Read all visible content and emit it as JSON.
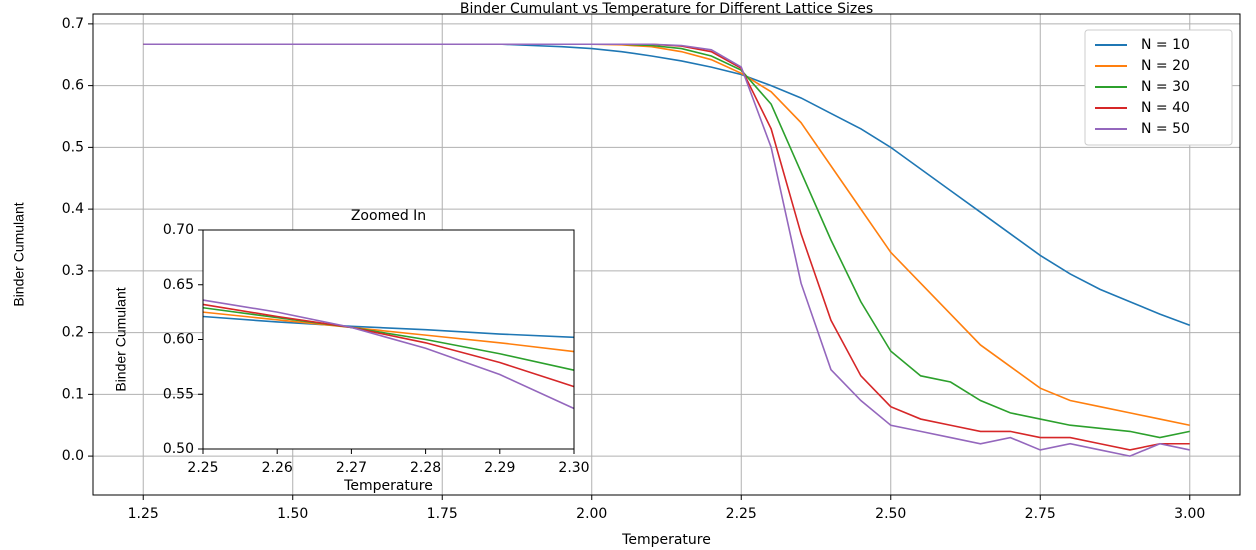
{
  "chart_data": [
    {
      "type": "line",
      "title": "Binder Cumulant vs Temperature for Different Lattice Sizes",
      "xlabel": "Temperature",
      "ylabel": "Binder Cumulant",
      "x": [
        1.25,
        1.3,
        1.35,
        1.4,
        1.45,
        1.5,
        1.55,
        1.6,
        1.65,
        1.7,
        1.75,
        1.8,
        1.85,
        1.9,
        1.95,
        2.0,
        2.05,
        2.1,
        2.15,
        2.2,
        2.25,
        2.3,
        2.35,
        2.4,
        2.45,
        2.5,
        2.55,
        2.6,
        2.65,
        2.7,
        2.75,
        2.8,
        2.85,
        2.9,
        2.95,
        3.0
      ],
      "series": [
        {
          "name": "N = 10",
          "color": "#1f77b4",
          "values": [
            0.667,
            0.667,
            0.667,
            0.667,
            0.667,
            0.667,
            0.667,
            0.667,
            0.667,
            0.667,
            0.667,
            0.667,
            0.667,
            0.665,
            0.663,
            0.66,
            0.655,
            0.648,
            0.64,
            0.63,
            0.618,
            0.6,
            0.58,
            0.555,
            0.53,
            0.5,
            0.465,
            0.43,
            0.395,
            0.36,
            0.325,
            0.295,
            0.27,
            0.25,
            0.23,
            0.212
          ]
        },
        {
          "name": "N = 20",
          "color": "#ff7f0e",
          "values": [
            0.667,
            0.667,
            0.667,
            0.667,
            0.667,
            0.667,
            0.667,
            0.667,
            0.667,
            0.667,
            0.667,
            0.667,
            0.667,
            0.667,
            0.667,
            0.667,
            0.666,
            0.663,
            0.655,
            0.642,
            0.62,
            0.59,
            0.54,
            0.47,
            0.4,
            0.33,
            0.28,
            0.23,
            0.18,
            0.145,
            0.11,
            0.09,
            0.08,
            0.07,
            0.06,
            0.05
          ]
        },
        {
          "name": "N = 30",
          "color": "#2ca02c",
          "values": [
            0.667,
            0.667,
            0.667,
            0.667,
            0.667,
            0.667,
            0.667,
            0.667,
            0.667,
            0.667,
            0.667,
            0.667,
            0.667,
            0.667,
            0.667,
            0.667,
            0.667,
            0.665,
            0.66,
            0.648,
            0.625,
            0.57,
            0.46,
            0.35,
            0.25,
            0.17,
            0.13,
            0.12,
            0.09,
            0.07,
            0.06,
            0.05,
            0.045,
            0.04,
            0.03,
            0.04
          ]
        },
        {
          "name": "N = 40",
          "color": "#d62728",
          "values": [
            0.667,
            0.667,
            0.667,
            0.667,
            0.667,
            0.667,
            0.667,
            0.667,
            0.667,
            0.667,
            0.667,
            0.667,
            0.667,
            0.667,
            0.667,
            0.667,
            0.667,
            0.667,
            0.664,
            0.655,
            0.628,
            0.53,
            0.36,
            0.22,
            0.13,
            0.08,
            0.06,
            0.05,
            0.04,
            0.04,
            0.03,
            0.03,
            0.02,
            0.01,
            0.02,
            0.02
          ]
        },
        {
          "name": "N = 50",
          "color": "#9467bd",
          "values": [
            0.667,
            0.667,
            0.667,
            0.667,
            0.667,
            0.667,
            0.667,
            0.667,
            0.667,
            0.667,
            0.667,
            0.667,
            0.667,
            0.667,
            0.667,
            0.667,
            0.667,
            0.667,
            0.665,
            0.658,
            0.63,
            0.5,
            0.28,
            0.14,
            0.09,
            0.05,
            0.04,
            0.03,
            0.02,
            0.03,
            0.01,
            0.02,
            0.01,
            0.0,
            0.02,
            0.01
          ]
        }
      ],
      "xlim": [
        1.166,
        3.084
      ],
      "ylim": [
        -0.063,
        0.716
      ],
      "xticks": [
        1.25,
        {
          "value": 1.5,
          "label": "1.50"
        },
        1.75,
        {
          "value": 2,
          "label": "2.00"
        },
        2.25,
        {
          "value": 2.5,
          "label": "2.50"
        },
        2.75,
        {
          "value": 3,
          "label": "3.00"
        }
      ],
      "yticks": [
        {
          "value": 0,
          "label": "0.0"
        },
        0.1,
        0.2,
        0.3,
        0.4,
        0.5,
        0.6,
        0.7
      ],
      "grid": true,
      "legend": "upper right"
    },
    {
      "type": "line",
      "title": "Zoomed In",
      "xlabel": "Temperature",
      "ylabel": "Binder Cumulant",
      "x": [
        2.25,
        2.26,
        2.27,
        2.28,
        2.29,
        2.3
      ],
      "series": [
        {
          "color": "#1f77b4",
          "values": [
            0.621,
            0.616,
            0.612,
            0.609,
            0.605,
            0.602
          ]
        },
        {
          "color": "#ff7f0e",
          "values": [
            0.625,
            0.618,
            0.611,
            0.604,
            0.597,
            0.589
          ]
        },
        {
          "color": "#2ca02c",
          "values": [
            0.629,
            0.62,
            0.611,
            0.6,
            0.587,
            0.572
          ]
        },
        {
          "color": "#d62728",
          "values": [
            0.632,
            0.621,
            0.611,
            0.597,
            0.579,
            0.557
          ]
        },
        {
          "color": "#9467bd",
          "values": [
            0.636,
            0.625,
            0.611,
            0.592,
            0.568,
            0.537
          ]
        }
      ],
      "xlim": [
        2.25,
        2.3
      ],
      "ylim": [
        0.5,
        0.7
      ],
      "xticks": [
        2.25,
        2.26,
        2.27,
        2.28,
        2.29,
        {
          "value": 2.3,
          "label": "2.30"
        }
      ],
      "yticks": [
        {
          "value": 0.5,
          "label": "0.50"
        },
        0.55,
        {
          "value": 0.6,
          "label": "0.60"
        },
        0.65,
        {
          "value": 0.7,
          "label": "0.70"
        }
      ],
      "grid": false
    }
  ]
}
